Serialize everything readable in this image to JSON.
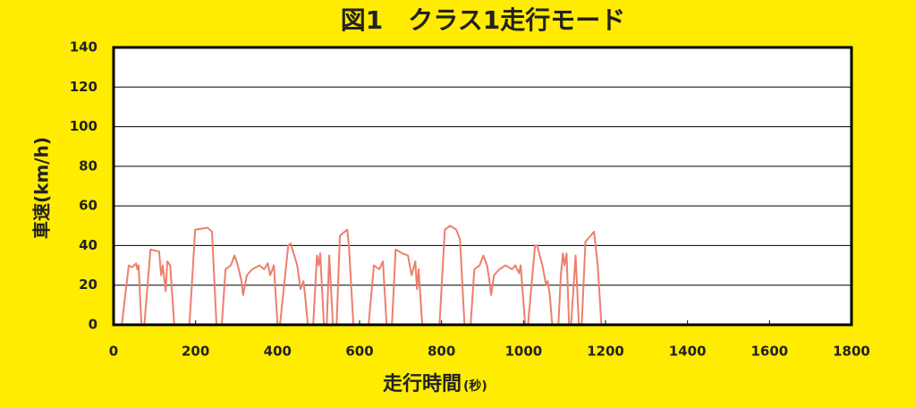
{
  "chart_data": {
    "type": "line",
    "title": "図1　クラス1走行モード",
    "xlabel": "走行時間",
    "xlabel_unit": "(秒)",
    "ylabel": "車速(km/h)",
    "xlim": [
      0,
      1800
    ],
    "ylim": [
      0,
      140
    ],
    "xticks": [
      0,
      200,
      400,
      600,
      800,
      1000,
      1200,
      1400,
      1600,
      1800
    ],
    "yticks": [
      0,
      20,
      40,
      60,
      80,
      100,
      120,
      140
    ],
    "grid": true,
    "series": [
      {
        "color": "#ee7f6c",
        "x": [
          0,
          20,
          37,
          45,
          55,
          58,
          61,
          68,
          75,
          90,
          111,
          116,
          120,
          127,
          131,
          138,
          148,
          180,
          185,
          199,
          229,
          240,
          251,
          264,
          273,
          286,
          295,
          303,
          312,
          316,
          325,
          338,
          356,
          367,
          376,
          382,
          391,
          400,
          406,
          426,
          432,
          448,
          456,
          463,
          467,
          474,
          487,
          496,
          500,
          504,
          513,
          520,
          526,
          535,
          544,
          552,
          570,
          574,
          585,
          622,
          635,
          648,
          657,
          666,
          679,
          688,
          705,
          718,
          727,
          736,
          740,
          744,
          753,
          795,
          808,
          821,
          836,
          845,
          856,
          871,
          880,
          893,
          902,
          911,
          917,
          921,
          928,
          941,
          956,
          972,
          980,
          989,
          993,
          1004,
          1011,
          1028,
          1033,
          1046,
          1055,
          1059,
          1064,
          1070,
          1085,
          1091,
          1096,
          1100,
          1105,
          1111,
          1116,
          1127,
          1135,
          1142,
          1151,
          1164,
          1172,
          1181,
          1190,
          1194
        ],
        "values": [
          0,
          0,
          30,
          29,
          31,
          28,
          30,
          0,
          0,
          38,
          37,
          25,
          30,
          17,
          32,
          30,
          0,
          0,
          0,
          48,
          49,
          47,
          0,
          0,
          28,
          30,
          35,
          30,
          22,
          15,
          25,
          28,
          30,
          28,
          31,
          25,
          30,
          0,
          0,
          40,
          41,
          30,
          18,
          22,
          15,
          0,
          0,
          35,
          30,
          36,
          0,
          0,
          35,
          0,
          0,
          45,
          48,
          40,
          0,
          0,
          30,
          28,
          32,
          0,
          0,
          38,
          36,
          35,
          25,
          32,
          18,
          28,
          0,
          0,
          48,
          50,
          48,
          43,
          0,
          0,
          28,
          30,
          35,
          30,
          22,
          15,
          25,
          28,
          30,
          28,
          30,
          26,
          30,
          0,
          0,
          40,
          40,
          30,
          20,
          22,
          15,
          0,
          0,
          25,
          36,
          30,
          36,
          0,
          0,
          35,
          0,
          0,
          42,
          45,
          47,
          30,
          0,
          0
        ]
      }
    ]
  }
}
